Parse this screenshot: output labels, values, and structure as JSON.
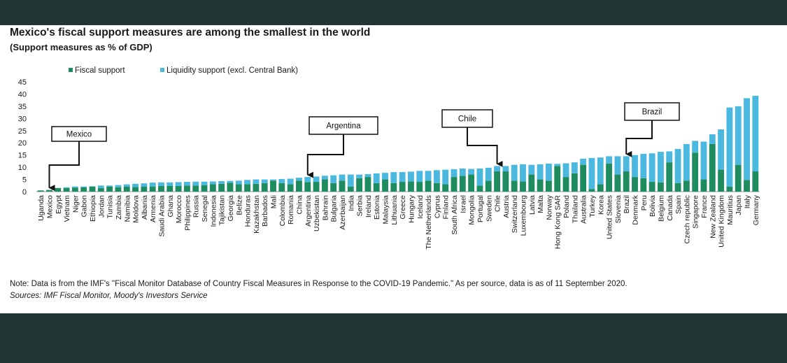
{
  "title": "Mexico's fiscal support measures are among the smallest in the world",
  "subtitle": "(Support measures as % of GDP)",
  "note": "Note: Data is from the IMF's \"Fiscal Monitor Database of Country Fiscal Measures in Response to the COVID-19 Pandemic.\" As per source, data is as of 11 September 2020.",
  "sources": "Sources: IMF Fiscal Monitor, Moody's Investors Service",
  "colors": {
    "fiscal": "#1e8c5e",
    "liquidity": "#4bb8e0",
    "background": "#233535",
    "panel": "#ffffff"
  },
  "chart_data": {
    "type": "bar",
    "stacked": true,
    "ylim": [
      0,
      45
    ],
    "yticks": [
      0,
      5,
      10,
      15,
      20,
      25,
      30,
      35,
      40,
      45
    ],
    "legend": "top-left",
    "grid": false,
    "categories": [
      "Uganda",
      "Mexico",
      "Egypt",
      "Vietnam",
      "Niger",
      "Gabon",
      "Ethiopia",
      "Jordan",
      "Tunisia",
      "Zambia",
      "Namibia",
      "Moldova",
      "Albania",
      "Armenia",
      "Saudi Arabia",
      "Ghana",
      "Morocco",
      "Philippines",
      "Russia",
      "Senegal",
      "Indonesia",
      "Tajikistan",
      "Georgia",
      "Belize",
      "Honduras",
      "Kazakhstan",
      "Barbados",
      "Mali",
      "Colombia",
      "Romania",
      "China",
      "Argentina",
      "Uzbekistan",
      "Bahrain",
      "Bulgaria",
      "Azerbaijan",
      "India",
      "Serbia",
      "Ireland",
      "Estonia",
      "Malaysia",
      "Lithuania",
      "Greece",
      "Hungary",
      "Iceland",
      "The Netherlands",
      "Cyprus",
      "Finland",
      "South Africa",
      "Israel",
      "Mongolia",
      "Portugal",
      "Sweden",
      "Chile",
      "Austria",
      "Switzerland",
      "Luxembourg",
      "Latvia",
      "Malta",
      "Norway",
      "Hong Kong SAR",
      "Poland",
      "Thailand",
      "Australia",
      "Turkey",
      "Korea",
      "United States",
      "Slovenia",
      "Brazil",
      "Denmark",
      "Peru",
      "Bolivia",
      "Belgium",
      "Canada",
      "Spain",
      "Czech republic",
      "Singapore",
      "France",
      "New Zealand",
      "United Kingdom",
      "Mauritius",
      "Japan",
      "Italy",
      "Germany"
    ],
    "series": [
      {
        "name": "Fiscal support",
        "color": "#1e8c5e",
        "values": [
          0.5,
          0.7,
          1.5,
          1.5,
          1.6,
          1.8,
          2.0,
          1.5,
          2.0,
          1.8,
          2.0,
          1.9,
          2.0,
          2.1,
          2.3,
          2.3,
          2.3,
          2.5,
          2.5,
          2.6,
          3.0,
          3.2,
          3.6,
          3.0,
          3.0,
          3.2,
          3.5,
          4.5,
          3.5,
          3.0,
          4.5,
          3.9,
          4.0,
          5.0,
          3.5,
          4.5,
          2.0,
          5.5,
          6.0,
          3.5,
          5.0,
          3.5,
          4.0,
          4.2,
          4.0,
          4.5,
          3.5,
          3.0,
          6.0,
          6.5,
          7.0,
          2.5,
          4.5,
          8.3,
          8.3,
          4.5,
          4.2,
          7.0,
          5.0,
          4.5,
          10.5,
          6.0,
          7.5,
          11.0,
          1.0,
          3.0,
          11.5,
          7.0,
          8.3,
          6.0,
          5.5,
          4.0,
          3.8,
          12.0,
          3.5,
          4.5,
          16.0,
          5.0,
          19.5,
          9.0,
          2.0,
          11.0,
          4.8,
          8.3
        ]
      },
      {
        "name": "Liquidity support (excl. Central Bank)",
        "color": "#4bb8e0",
        "values": [
          0.0,
          0.0,
          0.0,
          0.3,
          0.5,
          0.3,
          0.2,
          1.0,
          0.5,
          0.9,
          1.0,
          1.3,
          1.4,
          1.6,
          1.5,
          1.5,
          1.6,
          1.5,
          1.6,
          1.5,
          1.2,
          1.1,
          0.8,
          1.5,
          1.8,
          1.8,
          1.5,
          0.5,
          1.7,
          2.3,
          1.2,
          2.1,
          2.2,
          1.5,
          3.2,
          2.5,
          5.0,
          1.5,
          1.2,
          4.0,
          2.7,
          4.5,
          4.0,
          4.0,
          4.5,
          4.0,
          5.3,
          6.0,
          3.2,
          3.0,
          2.3,
          7.0,
          5.3,
          2.2,
          2.2,
          6.5,
          7.0,
          4.0,
          6.2,
          7.0,
          0.9,
          5.6,
          4.5,
          2.5,
          12.8,
          11.0,
          3.0,
          7.5,
          6.2,
          9.0,
          10.0,
          11.7,
          12.5,
          4.5,
          14.0,
          15.0,
          4.8,
          15.5,
          4.0,
          16.5,
          32.5,
          24.0,
          33.5,
          31.0
        ]
      }
    ],
    "callouts": [
      {
        "label": "Mexico",
        "target": "Mexico"
      },
      {
        "label": "Argentina",
        "target": "Argentina"
      },
      {
        "label": "Chile",
        "target": "Chile"
      },
      {
        "label": "Brazil",
        "target": "Brazil"
      }
    ]
  }
}
